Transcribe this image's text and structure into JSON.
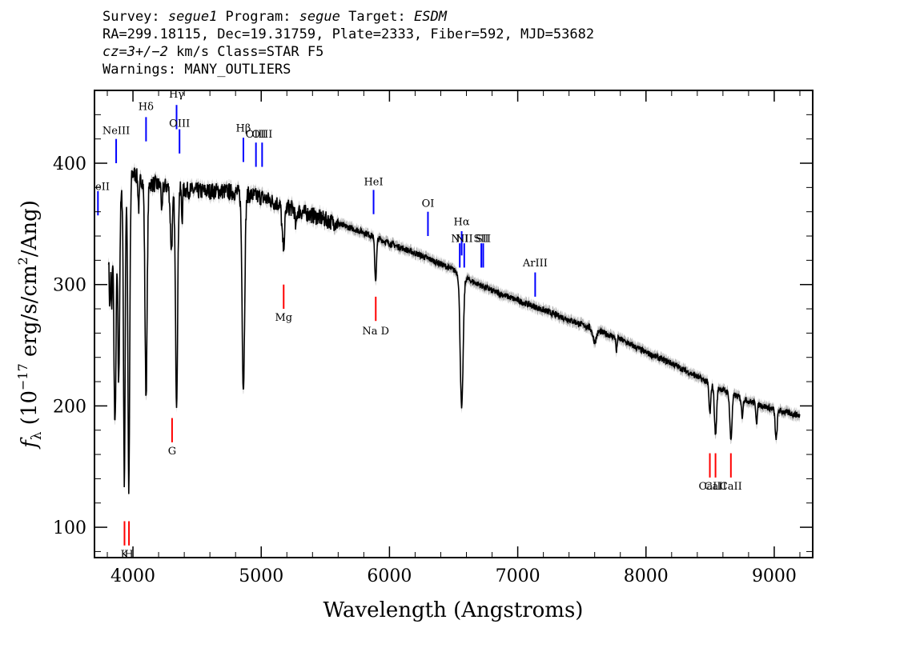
{
  "header": {
    "line1": {
      "survey_label": "Survey: ",
      "survey": "segue1",
      "program_label": " Program: ",
      "program": "segue",
      "target_label": " Target: ",
      "target": "ESDM"
    },
    "line2": "RA=299.18115, Dec=19.31759, Plate=2333, Fiber=592, MJD=53682",
    "line3": {
      "cz": "cz=3+/−2",
      "rest": " km/s Class=STAR F5"
    },
    "line4": "Warnings: MANY_OUTLIERS"
  },
  "chart_data": {
    "type": "line",
    "xlabel": "Wavelength (Angstroms)",
    "ylabel": "fλ (10⁻¹⁷ erg/s/cm²/Ang)",
    "xlim": [
      3700,
      9300
    ],
    "ylim": [
      75,
      460
    ],
    "x_ticks": [
      4000,
      5000,
      6000,
      7000,
      8000,
      9000
    ],
    "y_ticks": [
      100,
      200,
      300,
      400
    ],
    "colors": {
      "spectrum": "#000000",
      "error_band": "#b4b4b4",
      "emission_lines": "#0000ff",
      "absorption_lines": "#ff0000"
    },
    "continuum": {
      "x": [
        3800,
        3850,
        3900,
        3950,
        4000,
        4050,
        4100,
        4200,
        4300,
        4400,
        4500,
        4600,
        4700,
        4800,
        4900,
        5000,
        5200,
        5400,
        5600,
        5800,
        6000,
        6200,
        6400,
        6500,
        6600,
        6700,
        6800,
        7000,
        7200,
        7400,
        7600,
        7800,
        8000,
        8200,
        8400,
        8600,
        8800,
        9000,
        9200
      ],
      "y": [
        330,
        360,
        372,
        382,
        392,
        388,
        384,
        382,
        380,
        378,
        377,
        377,
        377,
        376,
        374,
        372,
        364,
        357,
        350,
        343,
        334,
        326,
        317,
        312,
        305,
        300,
        295,
        287,
        279,
        271,
        263,
        255,
        244,
        235,
        224,
        213,
        204,
        197,
        192
      ]
    },
    "absorption_features": [
      {
        "center": 3820,
        "depth": 60,
        "width": 8
      },
      {
        "center": 3835,
        "depth": 70,
        "width": 6
      },
      {
        "center": 3860,
        "depth": 180,
        "width": 12
      },
      {
        "center": 3889,
        "depth": 150,
        "width": 10
      },
      {
        "center": 3933,
        "depth": 240,
        "width": 9
      },
      {
        "center": 3968,
        "depth": 255,
        "width": 10
      },
      {
        "center": 4045,
        "depth": 25,
        "width": 8
      },
      {
        "center": 4102,
        "depth": 175,
        "width": 12
      },
      {
        "center": 4226,
        "depth": 25,
        "width": 6
      },
      {
        "center": 4300,
        "depth": 50,
        "width": 12
      },
      {
        "center": 4340,
        "depth": 175,
        "width": 12
      },
      {
        "center": 4383,
        "depth": 25,
        "width": 6
      },
      {
        "center": 4861,
        "depth": 160,
        "width": 14
      },
      {
        "center": 5172,
        "depth": 35,
        "width": 14
      },
      {
        "center": 5270,
        "depth": 15,
        "width": 8
      },
      {
        "center": 5892,
        "depth": 35,
        "width": 10
      },
      {
        "center": 6563,
        "depth": 110,
        "width": 16
      },
      {
        "center": 7600,
        "depth": 10,
        "width": 20
      },
      {
        "center": 7770,
        "depth": 12,
        "width": 6
      },
      {
        "center": 8498,
        "depth": 25,
        "width": 10
      },
      {
        "center": 8542,
        "depth": 40,
        "width": 12
      },
      {
        "center": 8662,
        "depth": 38,
        "width": 12
      },
      {
        "center": 8750,
        "depth": 15,
        "width": 8
      },
      {
        "center": 8863,
        "depth": 15,
        "width": 8
      },
      {
        "center": 9015,
        "depth": 25,
        "width": 10
      }
    ],
    "emission_lines": [
      {
        "label": "NeII",
        "wavelength": 3727,
        "y_low": 357,
        "y_high": 377,
        "label_y": 378
      },
      {
        "label": "NeIII",
        "wavelength": 3869,
        "y_low": 400,
        "y_high": 420,
        "label_y": 424
      },
      {
        "label": "Hδ",
        "wavelength": 4102,
        "y_low": 418,
        "y_high": 438,
        "label_y": 444
      },
      {
        "label": "Hγ",
        "wavelength": 4340,
        "y_low": 428,
        "y_high": 448,
        "label_y": 454
      },
      {
        "label": "OIII",
        "wavelength": 4363,
        "y_low": 408,
        "y_high": 428,
        "label_y": 430
      },
      {
        "label": "Hβ",
        "wavelength": 4861,
        "y_low": 401,
        "y_high": 421,
        "label_y": 426
      },
      {
        "label": "OIII",
        "wavelength": 4959,
        "y_low": 397,
        "y_high": 417,
        "label_y": 421
      },
      {
        "label": "OIII",
        "wavelength": 5007,
        "y_low": 397,
        "y_high": 417,
        "label_y": 421
      },
      {
        "label": "HeI",
        "wavelength": 5876,
        "y_low": 358,
        "y_high": 378,
        "label_y": 382
      },
      {
        "label": "OI",
        "wavelength": 6300,
        "y_low": 340,
        "y_high": 360,
        "label_y": 364
      },
      {
        "label": "NII",
        "wavelength": 6548,
        "y_low": 314,
        "y_high": 334,
        "label_y": 335
      },
      {
        "label": "Hα",
        "wavelength": 6563,
        "y_low": 324,
        "y_high": 344,
        "label_y": 349
      },
      {
        "label": "NII",
        "wavelength": 6583,
        "y_low": 314,
        "y_high": 334,
        "label_y": 335
      },
      {
        "label": "SII",
        "wavelength": 6716,
        "y_low": 314,
        "y_high": 334,
        "label_y": 335
      },
      {
        "label": "SII",
        "wavelength": 6731,
        "y_low": 314,
        "y_high": 334,
        "label_y": 335
      },
      {
        "label": "ArIII",
        "wavelength": 7136,
        "y_low": 290,
        "y_high": 310,
        "label_y": 315
      }
    ],
    "absorption_lines": [
      {
        "label": "K",
        "wavelength": 3934,
        "y_low": 85,
        "y_high": 105,
        "label_y": 75
      },
      {
        "label": "H",
        "wavelength": 3969,
        "y_low": 85,
        "y_high": 105,
        "label_y": 75
      },
      {
        "label": "G",
        "wavelength": 4305,
        "y_low": 170,
        "y_high": 190,
        "label_y": 160
      },
      {
        "label": "Mg",
        "wavelength": 5175,
        "y_low": 280,
        "y_high": 300,
        "label_y": 270
      },
      {
        "label": "Na D",
        "wavelength": 5893,
        "y_low": 270,
        "y_high": 290,
        "label_y": 259
      },
      {
        "label": "CaII",
        "wavelength": 8498,
        "y_low": 141,
        "y_high": 161,
        "label_y": 131
      },
      {
        "label": "CaII",
        "wavelength": 8542,
        "y_low": 141,
        "y_high": 161,
        "label_y": 131
      },
      {
        "label": "CaII",
        "wavelength": 8662,
        "y_low": 141,
        "y_high": 161,
        "label_y": 131
      }
    ]
  }
}
